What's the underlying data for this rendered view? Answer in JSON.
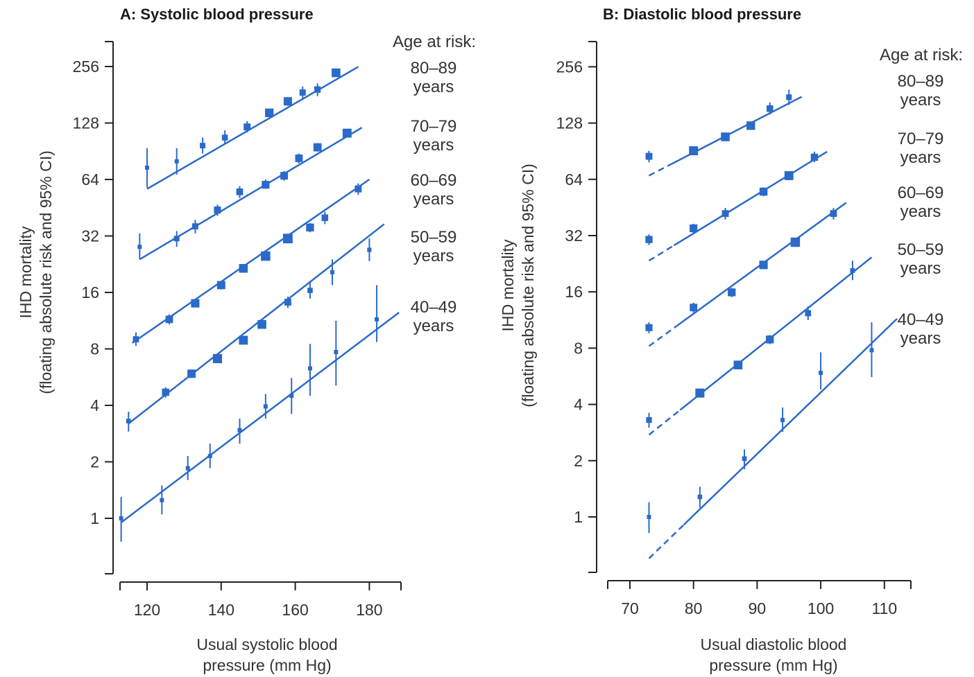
{
  "chart_data": [
    {
      "type": "scatter",
      "title": "A: Systolic blood pressure",
      "xlabel": [
        "Usual systolic blood",
        "pressure (mm Hg)"
      ],
      "ylabel": [
        "IHD mortality",
        "(floating absolute risk and 95% CI)"
      ],
      "yscale": "log2",
      "xlim": [
        112,
        188
      ],
      "ylim": [
        0.5,
        362
      ],
      "xticks": [
        "120",
        "140",
        "160",
        "180"
      ],
      "yticks": [
        "1",
        "2",
        "4",
        "8",
        "16",
        "32",
        "64",
        "128",
        "256"
      ],
      "legend_title": "Age at risk:",
      "series": [
        {
          "name": "80–89 years",
          "label_lines": [
            "80–89",
            "years"
          ],
          "x": [
            120,
            128,
            135,
            141,
            147,
            153,
            158,
            162,
            166,
            171
          ],
          "y": [
            74,
            80,
            97,
            107,
            122,
            145,
            167,
            186,
            193,
            237
          ],
          "lo": [
            58,
            68,
            88,
            98,
            114,
            138,
            158,
            170,
            178,
            226
          ],
          "hi": [
            94,
            94,
            107,
            117,
            131,
            152,
            175,
            200,
            208,
            248
          ],
          "fit": {
            "x": [
              120,
              177
            ],
            "y": [
              57,
              255
            ]
          }
        },
        {
          "name": "70–79 years",
          "label_lines": [
            "70–79",
            "years"
          ],
          "x": [
            118,
            128,
            133,
            139,
            145,
            152,
            157,
            161,
            166,
            174
          ],
          "y": [
            28,
            31,
            36,
            44,
            55,
            60,
            67,
            83,
            95,
            113
          ],
          "lo": [
            24,
            28,
            33,
            41,
            51,
            57,
            63,
            78,
            90,
            108
          ],
          "hi": [
            33,
            34,
            39,
            47,
            59,
            64,
            71,
            88,
            100,
            118
          ],
          "fit": {
            "x": [
              118,
              178
            ],
            "y": [
              24,
              121
            ]
          }
        },
        {
          "name": "60–69 years",
          "label_lines": [
            "60–69",
            "years"
          ],
          "x": [
            117,
            126,
            133,
            140,
            146,
            152,
            158,
            164,
            168,
            177
          ],
          "y": [
            9,
            11.5,
            14,
            17.5,
            21.5,
            25,
            31,
            35.5,
            40,
            57
          ],
          "lo": [
            8.3,
            10.8,
            13.3,
            16.6,
            20.5,
            24,
            29.8,
            33.5,
            37,
            53
          ],
          "hi": [
            9.8,
            12.2,
            14.7,
            18.4,
            22.5,
            26,
            32.2,
            37.5,
            43,
            61
          ],
          "fit": {
            "x": [
              116,
              180
            ],
            "y": [
              8.6,
              64
            ]
          }
        },
        {
          "name": "50–59 years",
          "label_lines": [
            "50–59",
            "years"
          ],
          "x": [
            115,
            125,
            132,
            139,
            146,
            151,
            158,
            164,
            170,
            180
          ],
          "y": [
            3.3,
            4.7,
            5.9,
            7.1,
            8.9,
            10.8,
            14.2,
            16.4,
            20.5,
            27
          ],
          "lo": [
            2.9,
            4.4,
            5.6,
            6.8,
            8.5,
            10.3,
            13.2,
            14.8,
            17.5,
            23.5
          ],
          "hi": [
            3.7,
            5.0,
            6.2,
            7.4,
            9.3,
            11.3,
            15.2,
            18.2,
            24,
            31
          ],
          "fit": {
            "x": [
              115,
              184
            ],
            "y": [
              3.2,
              37
            ]
          }
        },
        {
          "name": "40–49 years",
          "label_lines": [
            "40–49",
            "years"
          ],
          "x": [
            113,
            124,
            131,
            137,
            145,
            152,
            159,
            164,
            171,
            182
          ],
          "y": [
            1.0,
            1.25,
            1.85,
            2.15,
            2.95,
            3.95,
            4.5,
            6.3,
            7.7,
            11.5
          ],
          "lo": [
            0.75,
            1.05,
            1.6,
            1.85,
            2.5,
            3.4,
            3.6,
            4.5,
            5.1,
            8.7
          ],
          "hi": [
            1.3,
            1.5,
            2.15,
            2.5,
            3.4,
            4.6,
            5.6,
            8.5,
            11.3,
            17.5
          ],
          "fit": {
            "x": [
              113,
              188
            ],
            "y": [
              0.95,
              12.5
            ]
          }
        }
      ]
    },
    {
      "type": "scatter",
      "title": "B: Diastolic blood pressure",
      "xlabel": [
        "Usual diastolic blood",
        "pressure (mm Hg)"
      ],
      "ylabel": [
        "IHD mortality",
        "(floating absolute risk and 95% CI)"
      ],
      "yscale": "log2",
      "xlim": [
        67,
        113
      ],
      "ylim": [
        0.5,
        362
      ],
      "xticks": [
        "70",
        "80",
        "90",
        "100",
        "110"
      ],
      "yticks": [
        "1",
        "2",
        "4",
        "8",
        "16",
        "32",
        "64",
        "128",
        "256"
      ],
      "legend_title": "Age at risk:",
      "series": [
        {
          "name": "80–89 years",
          "label_lines": [
            "80–89",
            "years"
          ],
          "x": [
            73,
            80,
            85,
            89,
            92,
            95
          ],
          "y": [
            85,
            91,
            108,
            124,
            153,
            176
          ],
          "lo": [
            79,
            87,
            103,
            118,
            142,
            160
          ],
          "hi": [
            91,
            95,
            113,
            130,
            165,
            193
          ],
          "fit": {
            "x": [
              73,
              97
            ],
            "y": [
              67,
              177
            ]
          }
        },
        {
          "name": "70–79 years",
          "label_lines": [
            "70–79",
            "years"
          ],
          "x": [
            73,
            80,
            85,
            91,
            95,
            99
          ],
          "y": [
            30.5,
            35,
            42,
            55,
            67,
            84
          ],
          "lo": [
            28.5,
            33,
            39,
            52,
            64,
            79
          ],
          "hi": [
            32.5,
            37,
            45,
            58,
            70,
            90
          ],
          "fit": {
            "x": [
              73,
              101
            ],
            "y": [
              23.5,
              90
            ]
          }
        },
        {
          "name": "60–69 years",
          "label_lines": [
            "60–69",
            "years"
          ],
          "x": [
            73,
            80,
            86,
            91,
            96,
            102
          ],
          "y": [
            10.3,
            13.2,
            15.9,
            22.3,
            29.5,
            42
          ],
          "lo": [
            9.6,
            12.4,
            15,
            21.2,
            28.3,
            39
          ],
          "hi": [
            11,
            14,
            16.8,
            23.4,
            30.7,
            45
          ],
          "fit": {
            "x": [
              73,
              104
            ],
            "y": [
              8.2,
              48
            ]
          }
        },
        {
          "name": "50–59 years",
          "label_lines": [
            "50–59",
            "years"
          ],
          "x": [
            73,
            81,
            87,
            92,
            98,
            105
          ],
          "y": [
            3.3,
            4.6,
            6.5,
            8.9,
            12.3,
            20.8
          ],
          "lo": [
            3.0,
            4.4,
            6.2,
            8.4,
            11.3,
            18.5
          ],
          "hi": [
            3.6,
            4.8,
            6.8,
            9.4,
            13.4,
            23.5
          ],
          "fit": {
            "x": [
              73,
              108
            ],
            "y": [
              2.75,
              24.5
            ]
          }
        },
        {
          "name": "40–49 years",
          "label_lines": [
            "40–49",
            "years"
          ],
          "x": [
            73,
            81,
            88,
            94,
            100,
            108
          ],
          "y": [
            1.0,
            1.28,
            2.05,
            3.3,
            5.9,
            7.8
          ],
          "lo": [
            0.82,
            1.12,
            1.8,
            2.85,
            4.8,
            5.6
          ],
          "hi": [
            1.2,
            1.45,
            2.3,
            3.85,
            7.6,
            11
          ],
          "fit": {
            "x": [
              73,
              112
            ],
            "y": [
              0.6,
              11.5
            ]
          }
        }
      ]
    }
  ]
}
